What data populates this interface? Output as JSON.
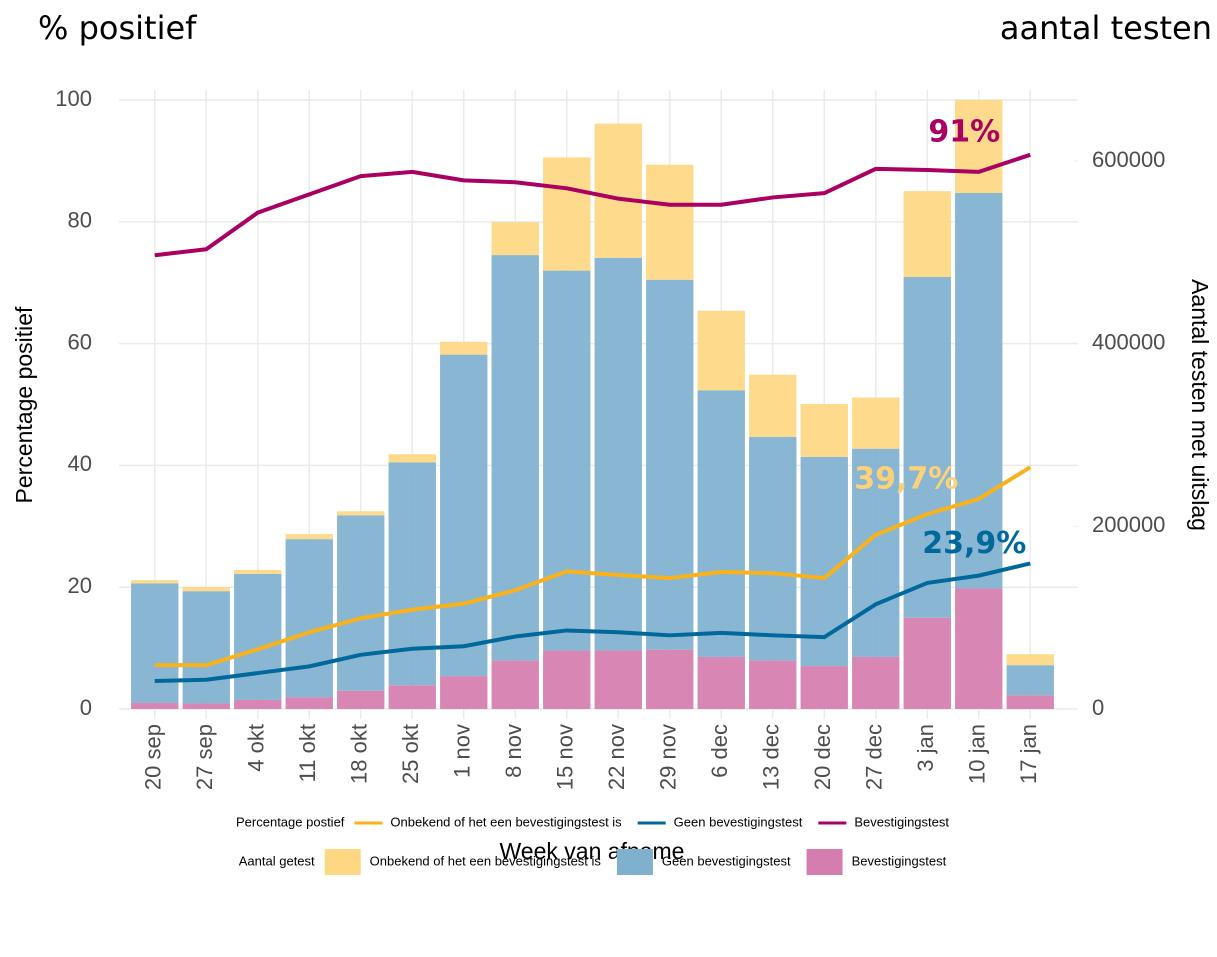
{
  "chart_data": {
    "type": "bar",
    "title": "% positief",
    "subtitle": "aantal testen",
    "ylabel": "Percentage positief",
    "y2label": "Aantal testen met uitslag",
    "xlabel": "Week van afname",
    "categories": [
      "20 sep",
      "27 sep",
      "4 okt",
      "11 okt",
      "18 okt",
      "25 okt",
      "1 nov",
      "8 nov",
      "15 nov",
      "22 nov",
      "29 nov",
      "6 dec",
      "13 dec",
      "20 dec",
      "27 dec",
      "3 jan",
      "10 jan",
      "17 jan"
    ],
    "ylim": [
      0,
      100
    ],
    "yticks": [
      0,
      20,
      40,
      60,
      80,
      100
    ],
    "y2lim": [
      0,
      666800
    ],
    "y2ticks": [
      0,
      200000,
      400000,
      600000
    ],
    "grid": true,
    "stacked": true,
    "legend_titles": {
      "line": "Percentage postief",
      "bar": "Aantal getest"
    },
    "series": [
      {
        "name": "Onbekend of het een bevestigingstest is",
        "type": "line",
        "color": "#f9b21b",
        "values": [
          7.2,
          7.2,
          9.8,
          12.6,
          14.9,
          16.3,
          17.3,
          19.5,
          22.6,
          22,
          21.5,
          22.5,
          22.3,
          21.5,
          28.6,
          32,
          34.5,
          39.7
        ],
        "value_labels": [
          null,
          null,
          null,
          null,
          null,
          null,
          null,
          null,
          null,
          null,
          null,
          null,
          null,
          null,
          null,
          null,
          null,
          "39,7%"
        ]
      },
      {
        "name": "Geen bevestigingstest",
        "type": "line",
        "color": "#01689b",
        "values": [
          4.6,
          4.8,
          5.9,
          7,
          8.9,
          9.9,
          10.3,
          11.9,
          12.9,
          12.6,
          12.1,
          12.5,
          12.1,
          11.8,
          17.2,
          20.7,
          21.9,
          23.9
        ],
        "value_labels": [
          null,
          null,
          null,
          null,
          null,
          null,
          null,
          null,
          null,
          null,
          null,
          null,
          null,
          null,
          null,
          null,
          null,
          "23,9%"
        ]
      },
      {
        "name": "Bevestigingstest",
        "type": "line",
        "color": "#a90061",
        "values": [
          74.5,
          75.5,
          81.5,
          84.5,
          87.5,
          88.2,
          86.8,
          86.5,
          85.5,
          83.8,
          82.8,
          82.8,
          84,
          84.7,
          88.7,
          88.5,
          88.2,
          91
        ],
        "value_labels": [
          null,
          null,
          null,
          null,
          null,
          null,
          null,
          null,
          null,
          null,
          null,
          null,
          null,
          null,
          null,
          null,
          null,
          "91%"
        ]
      },
      {
        "name": "Onbekend of het een bevestigingstest is",
        "type": "bar",
        "axis": "y2",
        "color": "#fed782",
        "values": [
          3500,
          4500,
          4400,
          5500,
          4500,
          9000,
          14000,
          36000,
          124000,
          147000,
          126000,
          87000,
          68000,
          58000,
          56000,
          94000,
          102000,
          12000
        ]
      },
      {
        "name": "Geen bevestigingstest",
        "type": "bar",
        "axis": "y2",
        "color": "#7fb1cf",
        "values": [
          131000,
          123000,
          138000,
          173000,
          192000,
          244000,
          352000,
          444000,
          416000,
          430000,
          405000,
          292000,
          245000,
          229000,
          228000,
          373000,
          433000,
          33000
        ]
      },
      {
        "name": "Bevestigingstest",
        "type": "bar",
        "axis": "y2",
        "color": "#d57dae",
        "values": [
          6600,
          6000,
          9900,
          13000,
          20000,
          26000,
          36000,
          53000,
          64000,
          64000,
          65000,
          57000,
          53000,
          47000,
          57000,
          100000,
          132000,
          15000
        ]
      }
    ]
  }
}
